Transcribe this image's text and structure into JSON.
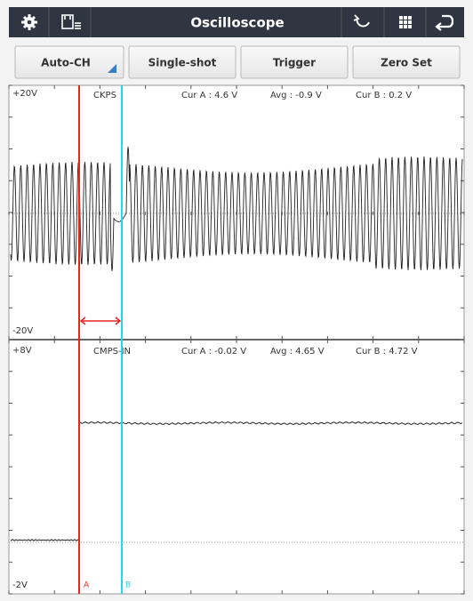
{
  "toolbar": {
    "title": "Oscilloscope"
  },
  "buttons": [
    "Auto-CH",
    "Single-shot",
    "Trigger",
    "Zero Set"
  ],
  "channels": [
    {
      "top_label": "+20V",
      "name": "CKPS",
      "cur_a": "Cur A : 4.6 V",
      "avg": "Avg : -0.9 V",
      "cur_b": "Cur B : 0.2 V",
      "bottom_label": "-20V"
    },
    {
      "top_label": "+8V",
      "name": "CMPS-IN",
      "cur_a": "Cur A : -0.02 V",
      "avg": "Avg : 4.65 V",
      "cur_b": "Cur B : 4.72 V",
      "bottom_label": "-2V"
    }
  ],
  "cursors": {
    "a": "A",
    "b": "B"
  }
}
